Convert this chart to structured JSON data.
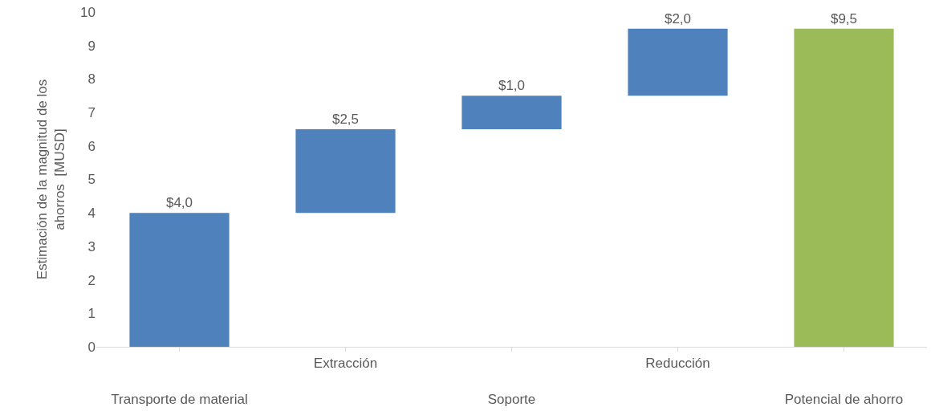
{
  "chart_data": {
    "type": "bar",
    "ylabel": "Estimación de la magnitud de los ahorros  [MUSD]",
    "categories": [
      "Transporte de material",
      "Extracción",
      "Soporte",
      "Reducción",
      "Potencial de ahorro"
    ],
    "values": [
      4.0,
      2.5,
      1.0,
      2.0,
      9.5
    ],
    "base": [
      0,
      4.0,
      6.5,
      7.5,
      0
    ],
    "colors": [
      "#4f81bd",
      "#4f81bd",
      "#4f81bd",
      "#4f81bd",
      "#9bbb59"
    ],
    "value_labels": [
      "$4,0",
      "$2,5",
      "$1,0",
      "$2,0",
      "$9,5"
    ],
    "ylim": [
      0,
      10
    ],
    "yticks": [
      0,
      1,
      2,
      3,
      4,
      5,
      6,
      7,
      8,
      9,
      10
    ]
  }
}
